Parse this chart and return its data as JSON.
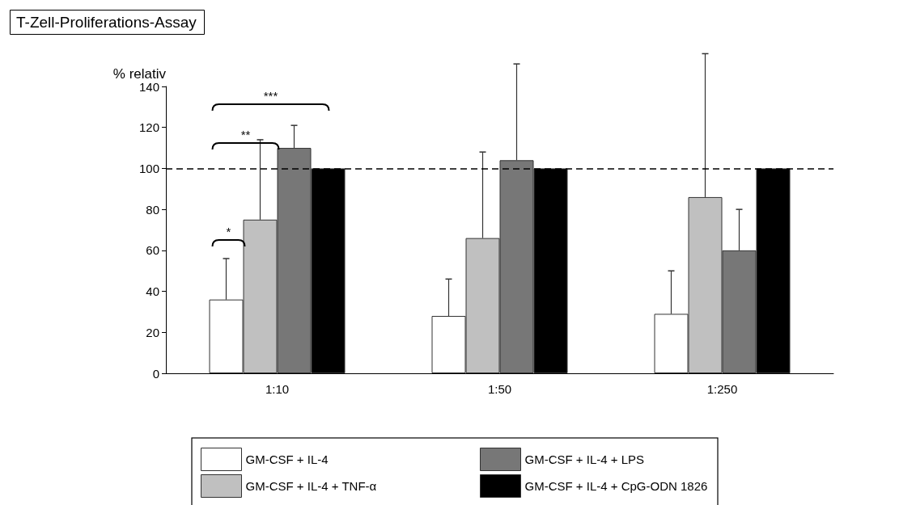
{
  "chart_data": {
    "type": "bar",
    "title": "T-Zell-Proliferations-Assay",
    "ylabel": "% relativ",
    "categories": [
      "1:10",
      "1:50",
      "1:250"
    ],
    "series": [
      {
        "name": "GM-CSF + IL-4",
        "color": "#ffffff",
        "values": [
          36,
          28,
          29
        ],
        "errors": [
          [
            36,
            56
          ],
          [
            28,
            46
          ],
          [
            29,
            50
          ]
        ]
      },
      {
        "name": "GM-CSF + IL-4 + TNF-α",
        "color": "#c0c0c0",
        "values": [
          75,
          66,
          86
        ],
        "errors": [
          [
            75,
            114
          ],
          [
            66,
            108
          ],
          [
            86,
            156
          ]
        ]
      },
      {
        "name": "GM-CSF + IL-4 + LPS",
        "color": "#777777",
        "values": [
          110,
          104,
          60
        ],
        "errors": [
          [
            110,
            121
          ],
          [
            104,
            151
          ],
          [
            60,
            80
          ]
        ]
      },
      {
        "name": "GM-CSF + IL-4 + CpG-ODN 1826",
        "color": "#000000",
        "values": [
          100,
          100,
          100
        ],
        "errors": [
          null,
          null,
          null
        ]
      }
    ],
    "ylim": [
      0,
      140
    ],
    "yticks": [
      0,
      20,
      40,
      60,
      80,
      100,
      120,
      140
    ],
    "ref_lines": [
      {
        "axis": "y",
        "value": 100,
        "line_style": "dashed",
        "color": "#000000"
      }
    ],
    "annotations": [
      "*",
      "**",
      "***"
    ],
    "legend": "bottom",
    "grid": false
  }
}
